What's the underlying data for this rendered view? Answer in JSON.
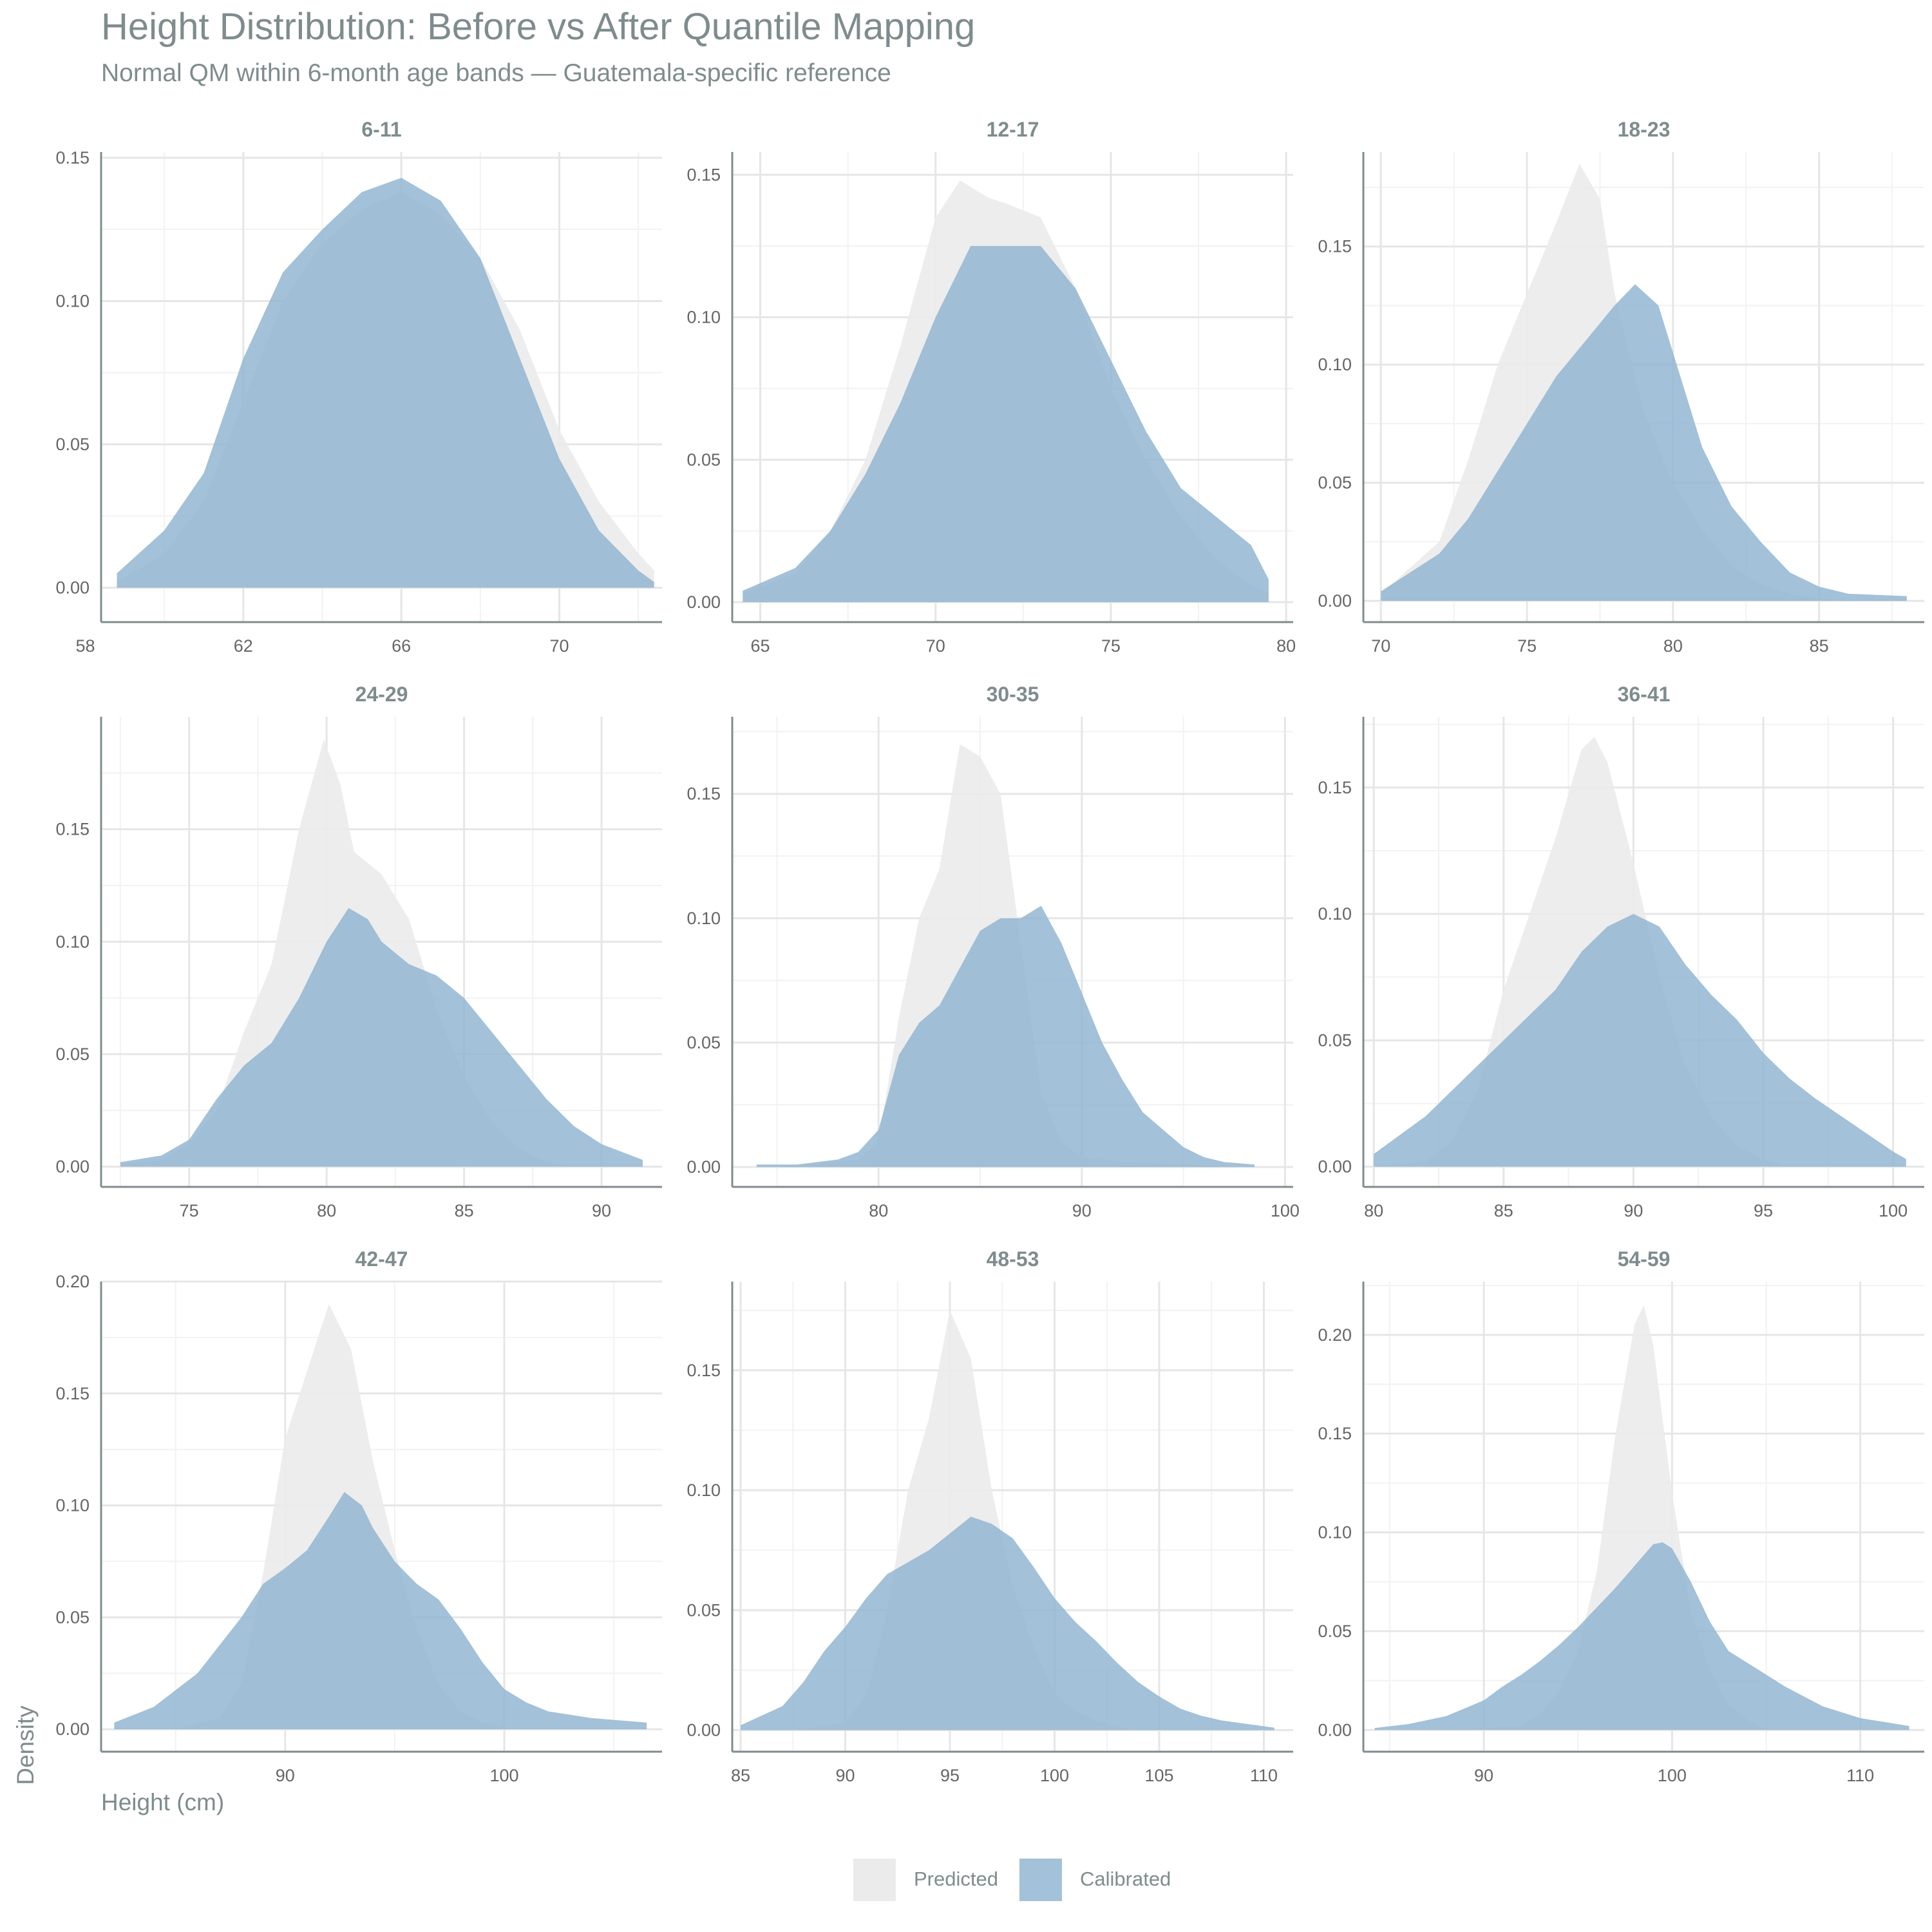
{
  "chart_data": {
    "type": "area",
    "title": "Height Distribution: Before vs After Quantile Mapping",
    "subtitle": "Normal QM within 6-month age bands — Guatemala-specific reference",
    "xlabel": "Height (cm)",
    "ylabel": "Density",
    "grid": true,
    "legend_position": "bottom",
    "series_styles": [
      {
        "name": "Predicted",
        "color": "#ebebeb"
      },
      {
        "name": "Calibrated",
        "color": "#8fb3d0"
      }
    ],
    "panels": [
      {
        "title": "6-11",
        "xlim": [
          58.4,
          72.6
        ],
        "ylim": [
          -0.012,
          0.152
        ],
        "xticks": [
          58,
          62,
          66,
          70
        ],
        "yticks": [
          0.0,
          0.05,
          0.1,
          0.15
        ],
        "series": [
          {
            "name": "Predicted",
            "x": [
              58.8,
              60,
              61,
              62,
              63,
              64,
              65,
              66,
              67,
              68,
              69,
              70,
              71,
              72,
              72.4
            ],
            "values": [
              0.002,
              0.012,
              0.03,
              0.065,
              0.1,
              0.12,
              0.132,
              0.138,
              0.13,
              0.115,
              0.09,
              0.055,
              0.03,
              0.012,
              0.006
            ]
          },
          {
            "name": "Calibrated",
            "x": [
              58.8,
              60,
              61,
              62,
              63,
              64,
              65,
              66,
              67,
              68,
              69,
              70,
              71,
              72,
              72.4
            ],
            "values": [
              0.005,
              0.02,
              0.04,
              0.08,
              0.11,
              0.125,
              0.138,
              0.143,
              0.135,
              0.115,
              0.08,
              0.045,
              0.02,
              0.006,
              0.002
            ]
          }
        ]
      },
      {
        "title": "12-17",
        "xlim": [
          64.2,
          80.2
        ],
        "ylim": [
          -0.007,
          0.158
        ],
        "xticks": [
          65,
          70,
          75,
          80
        ],
        "yticks": [
          0.0,
          0.05,
          0.1,
          0.15
        ],
        "series": [
          {
            "name": "Predicted",
            "x": [
              64.5,
              66,
              67,
              68,
              69,
              70,
              70.7,
              71.5,
              72,
              73,
              74,
              75,
              76,
              77,
              78,
              79,
              79.5
            ],
            "values": [
              0.003,
              0.01,
              0.025,
              0.05,
              0.09,
              0.135,
              0.148,
              0.142,
              0.14,
              0.135,
              0.11,
              0.075,
              0.05,
              0.03,
              0.015,
              0.006,
              0.003
            ]
          },
          {
            "name": "Calibrated",
            "x": [
              64.5,
              66,
              67,
              68,
              69,
              70,
              71,
              72,
              73,
              74,
              75,
              76,
              77,
              78,
              79,
              79.5
            ],
            "values": [
              0.004,
              0.012,
              0.025,
              0.045,
              0.07,
              0.1,
              0.125,
              0.125,
              0.125,
              0.11,
              0.085,
              0.06,
              0.04,
              0.03,
              0.02,
              0.008
            ]
          }
        ]
      },
      {
        "title": "18-23",
        "xlim": [
          69.4,
          88.6
        ],
        "ylim": [
          -0.009,
          0.19
        ],
        "xticks": [
          70,
          75,
          80,
          85
        ],
        "yticks": [
          0.0,
          0.05,
          0.1,
          0.15
        ],
        "series": [
          {
            "name": "Predicted",
            "x": [
              70,
              72,
              73,
              74,
              75,
              76,
              76.8,
              77.5,
              78,
              79,
              80,
              81,
              82,
              83,
              84,
              85,
              86
            ],
            "values": [
              0.003,
              0.025,
              0.06,
              0.1,
              0.13,
              0.16,
              0.185,
              0.17,
              0.13,
              0.08,
              0.05,
              0.03,
              0.015,
              0.007,
              0.003,
              0.001,
              0.0
            ]
          },
          {
            "name": "Calibrated",
            "x": [
              70,
              72,
              73,
              74,
              75,
              76,
              77,
              78,
              78.7,
              79.5,
              80,
              81,
              82,
              83,
              84,
              85,
              86,
              88
            ],
            "values": [
              0.004,
              0.02,
              0.035,
              0.055,
              0.075,
              0.095,
              0.11,
              0.125,
              0.134,
              0.125,
              0.105,
              0.065,
              0.04,
              0.025,
              0.012,
              0.006,
              0.003,
              0.002
            ]
          }
        ]
      },
      {
        "title": "24-29",
        "xlim": [
          71.8,
          92.2
        ],
        "ylim": [
          -0.009,
          0.2
        ],
        "xticks": [
          75,
          80,
          85,
          90
        ],
        "yticks": [
          0.0,
          0.05,
          0.1,
          0.15
        ],
        "series": [
          {
            "name": "Predicted",
            "x": [
              72.5,
              74,
              75,
              76,
              77,
              78,
              79,
              79.9,
              80.5,
              81,
              82,
              83,
              84,
              85,
              86,
              87,
              88,
              89
            ],
            "values": [
              0.001,
              0.003,
              0.01,
              0.025,
              0.06,
              0.09,
              0.15,
              0.19,
              0.17,
              0.14,
              0.13,
              0.11,
              0.07,
              0.04,
              0.02,
              0.008,
              0.002,
              0.0
            ]
          },
          {
            "name": "Calibrated",
            "x": [
              72.5,
              74,
              75,
              76,
              77,
              78,
              79,
              80,
              80.8,
              81.5,
              82,
              83,
              84,
              85,
              86,
              87,
              88,
              89,
              90,
              91.5
            ],
            "values": [
              0.002,
              0.005,
              0.012,
              0.03,
              0.045,
              0.055,
              0.075,
              0.1,
              0.115,
              0.11,
              0.1,
              0.09,
              0.085,
              0.075,
              0.06,
              0.045,
              0.03,
              0.018,
              0.01,
              0.003
            ]
          }
        ]
      },
      {
        "title": "30-35",
        "xlim": [
          72.8,
          100.4
        ],
        "ylim": [
          -0.008,
          0.181
        ],
        "xticks": [
          80,
          90,
          100
        ],
        "yticks": [
          0.0,
          0.05,
          0.1,
          0.15
        ],
        "series": [
          {
            "name": "Predicted",
            "x": [
              74,
              77,
              79,
              80,
              81,
              82,
              83,
              84,
              85,
              86,
              87,
              88,
              89,
              90,
              92,
              95,
              98
            ],
            "values": [
              0.0,
              0.001,
              0.003,
              0.01,
              0.06,
              0.1,
              0.12,
              0.17,
              0.165,
              0.15,
              0.09,
              0.03,
              0.01,
              0.004,
              0.002,
              0.001,
              0.0
            ]
          },
          {
            "name": "Calibrated",
            "x": [
              74,
              76,
              78,
              79,
              80,
              81,
              82,
              83,
              84,
              85,
              86,
              87,
              88,
              89,
              90,
              91,
              92,
              93,
              94,
              95,
              96,
              97,
              98.5
            ],
            "values": [
              0.001,
              0.001,
              0.003,
              0.006,
              0.015,
              0.045,
              0.058,
              0.065,
              0.08,
              0.095,
              0.1,
              0.1,
              0.105,
              0.09,
              0.07,
              0.05,
              0.035,
              0.022,
              0.015,
              0.008,
              0.004,
              0.002,
              0.001
            ]
          }
        ]
      },
      {
        "title": "36-41",
        "xlim": [
          79.6,
          101.2
        ],
        "ylim": [
          -0.008,
          0.178
        ],
        "xticks": [
          80,
          85,
          90,
          95,
          100
        ],
        "yticks": [
          0.0,
          0.05,
          0.1,
          0.15
        ],
        "series": [
          {
            "name": "Predicted",
            "x": [
              80,
              82,
              83,
              84,
              85,
              86,
              87,
              88,
              88.5,
              89,
              90,
              91,
              92,
              93,
              94,
              95,
              96
            ],
            "values": [
              0.0,
              0.002,
              0.01,
              0.03,
              0.07,
              0.1,
              0.13,
              0.165,
              0.17,
              0.16,
              0.12,
              0.075,
              0.04,
              0.02,
              0.008,
              0.003,
              0.0
            ]
          },
          {
            "name": "Calibrated",
            "x": [
              80,
              82,
              84,
              85,
              86,
              87,
              88,
              89,
              90,
              91,
              92,
              93,
              94,
              95,
              96,
              97,
              98,
              99,
              100,
              100.5
            ],
            "values": [
              0.005,
              0.02,
              0.04,
              0.05,
              0.06,
              0.07,
              0.085,
              0.095,
              0.1,
              0.095,
              0.08,
              0.068,
              0.058,
              0.045,
              0.035,
              0.027,
              0.02,
              0.013,
              0.006,
              0.003
            ]
          }
        ]
      },
      {
        "title": "42-47",
        "xlim": [
          81.6,
          107.2
        ],
        "ylim": [
          -0.01,
          0.2
        ],
        "xticks": [
          90,
          100
        ],
        "yticks": [
          0.0,
          0.05,
          0.1,
          0.15,
          0.2
        ],
        "series": [
          {
            "name": "Predicted",
            "x": [
              85,
              87,
              88,
              89,
              90,
              91,
              92,
              93,
              94,
              95,
              96,
              97,
              98,
              99,
              100,
              101
            ],
            "values": [
              0.0,
              0.005,
              0.02,
              0.07,
              0.13,
              0.16,
              0.19,
              0.17,
              0.12,
              0.08,
              0.045,
              0.02,
              0.008,
              0.003,
              0.001,
              0.0
            ]
          },
          {
            "name": "Calibrated",
            "x": [
              82.2,
              84,
              86,
              88,
              89,
              90,
              91,
              92,
              92.7,
              93.5,
              94,
              95,
              96,
              97,
              98,
              99,
              100,
              101,
              102,
              104,
              106.5
            ],
            "values": [
              0.003,
              0.01,
              0.025,
              0.05,
              0.065,
              0.072,
              0.08,
              0.095,
              0.106,
              0.1,
              0.09,
              0.075,
              0.065,
              0.058,
              0.045,
              0.03,
              0.018,
              0.012,
              0.008,
              0.005,
              0.003
            ]
          }
        ]
      },
      {
        "title": "48-53",
        "xlim": [
          84.6,
          111.4
        ],
        "ylim": [
          -0.009,
          0.187
        ],
        "xticks": [
          85,
          90,
          95,
          100,
          105,
          110
        ],
        "yticks": [
          0.0,
          0.05,
          0.1,
          0.15
        ],
        "series": [
          {
            "name": "Predicted",
            "x": [
              88,
              90,
              91,
              92,
              93,
              94,
              95,
              96,
              97,
              98,
              99,
              100,
              101,
              102,
              103,
              104
            ],
            "values": [
              0.0,
              0.003,
              0.015,
              0.05,
              0.1,
              0.13,
              0.175,
              0.155,
              0.1,
              0.06,
              0.035,
              0.015,
              0.008,
              0.004,
              0.001,
              0.0
            ]
          },
          {
            "name": "Calibrated",
            "x": [
              85,
              87,
              88,
              89,
              90,
              91,
              92,
              93,
              94,
              95,
              96,
              97,
              98,
              99,
              100,
              101,
              102,
              103,
              104,
              105,
              106,
              107,
              108,
              110.5
            ],
            "values": [
              0.002,
              0.01,
              0.02,
              0.033,
              0.043,
              0.055,
              0.065,
              0.07,
              0.075,
              0.082,
              0.089,
              0.086,
              0.08,
              0.068,
              0.055,
              0.045,
              0.037,
              0.028,
              0.02,
              0.014,
              0.009,
              0.006,
              0.004,
              0.001
            ]
          }
        ]
      },
      {
        "title": "54-59",
        "xlim": [
          83.6,
          113.4
        ],
        "ylim": [
          -0.011,
          0.227
        ],
        "xticks": [
          90,
          100,
          110
        ],
        "yticks": [
          0.0,
          0.05,
          0.1,
          0.15,
          0.2
        ],
        "series": [
          {
            "name": "Predicted",
            "x": [
              88,
              92,
              93,
              94,
              95,
              96,
              97,
              98,
              98.5,
              99,
              100,
              101,
              102,
              103,
              104,
              105
            ],
            "values": [
              0.0,
              0.002,
              0.008,
              0.02,
              0.04,
              0.08,
              0.15,
              0.205,
              0.215,
              0.195,
              0.12,
              0.06,
              0.03,
              0.013,
              0.005,
              0.0
            ]
          },
          {
            "name": "Calibrated",
            "x": [
              84.2,
              86,
              88,
              90,
              91,
              92,
              93,
              94,
              95,
              96,
              97,
              98,
              99,
              99.5,
              100,
              101,
              102,
              103,
              104,
              105,
              106,
              107,
              108,
              110,
              112.6
            ],
            "values": [
              0.001,
              0.003,
              0.007,
              0.015,
              0.022,
              0.028,
              0.035,
              0.043,
              0.052,
              0.062,
              0.072,
              0.083,
              0.094,
              0.095,
              0.092,
              0.075,
              0.055,
              0.04,
              0.034,
              0.028,
              0.022,
              0.017,
              0.012,
              0.006,
              0.002
            ]
          }
        ]
      }
    ]
  }
}
